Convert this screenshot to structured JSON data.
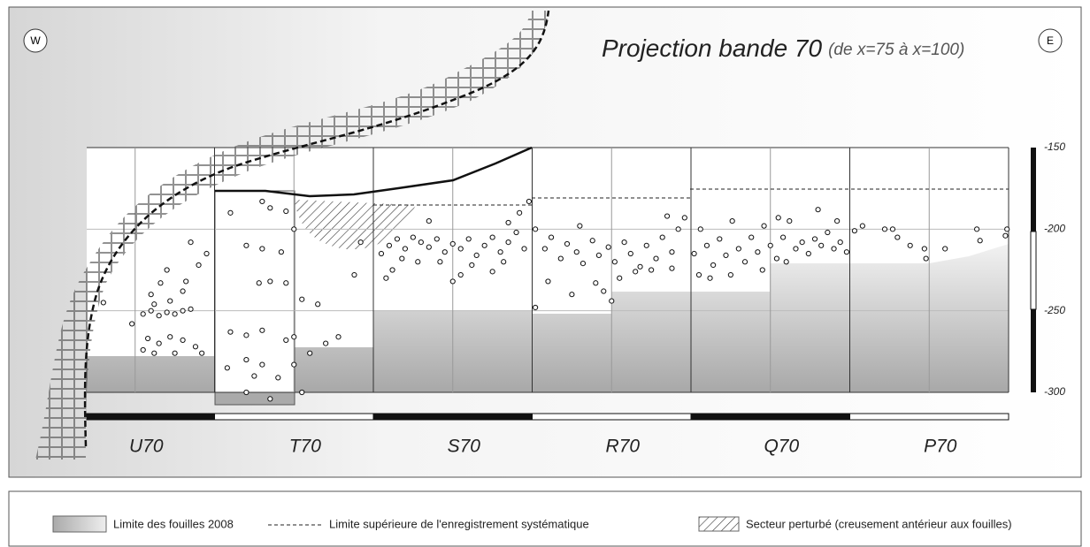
{
  "chart_data": {
    "type": "scatter",
    "title": "Projection bande 70",
    "subtitle": "(de x=75 à x=100)",
    "west_label": "W",
    "east_label": "E",
    "categories": [
      "U70",
      "T70",
      "S70",
      "R70",
      "Q70",
      "P70"
    ],
    "xlim": [
      0,
      6
    ],
    "ylim": [
      -150,
      -300
    ],
    "yticks": [
      -150,
      -200,
      -250,
      -300
    ],
    "legend_items": [
      "Limite des fouilles 2008",
      "Limite supérieure de l'enregistrement systématique",
      "Secteur perturbé (creusement antérieur aux fouilles)"
    ],
    "x": [
      0.55,
      0.6,
      0.65,
      0.7,
      0.75,
      0.8,
      0.85,
      0.62,
      0.72,
      0.8,
      0.82,
      0.6,
      0.66,
      0.7,
      0.9,
      0.85,
      0.95,
      0.58,
      0.65,
      0.72,
      0.8,
      0.88,
      0.92,
      0.75,
      0.62,
      0.55,
      0.48,
      0.3,
      1.1,
      1.3,
      1.35,
      1.45,
      1.2,
      1.28,
      1.35,
      1.45,
      1.42,
      1.3,
      1.5,
      1.55,
      1.1,
      1.2,
      1.3,
      1.45,
      1.5,
      1.08,
      1.2,
      1.25,
      1.3,
      1.4,
      1.5,
      1.55,
      1.2,
      1.35,
      1.6,
      1.7,
      1.78,
      1.65,
      1.88,
      1.92,
      2.05,
      2.1,
      2.15,
      2.2,
      2.25,
      2.3,
      2.35,
      2.4,
      2.45,
      2.5,
      2.55,
      2.6,
      2.65,
      2.7,
      2.75,
      2.8,
      2.85,
      2.9,
      2.95,
      2.18,
      2.28,
      2.42,
      2.62,
      2.82,
      2.12,
      2.55,
      2.75,
      2.08,
      2.35,
      2.85,
      2.92,
      2.98,
      2.5,
      3.02,
      3.08,
      3.12,
      3.18,
      3.22,
      3.28,
      3.32,
      3.38,
      3.42,
      3.48,
      3.52,
      3.58,
      3.62,
      3.68,
      3.72,
      3.78,
      3.82,
      3.88,
      3.92,
      3.96,
      3.85,
      3.75,
      3.55,
      3.4,
      3.25,
      3.5,
      3.02,
      3.1,
      3.3,
      3.45,
      3.65,
      3.88,
      4.02,
      4.06,
      4.1,
      4.14,
      4.18,
      4.22,
      4.26,
      4.3,
      4.34,
      4.38,
      4.42,
      4.46,
      4.5,
      4.54,
      4.58,
      4.62,
      4.66,
      4.7,
      4.74,
      4.78,
      4.82,
      4.86,
      4.9,
      4.94,
      4.98,
      4.05,
      4.12,
      4.25,
      4.45,
      4.6,
      4.8,
      4.92,
      4.55,
      5.03,
      5.08,
      5.22,
      5.27,
      5.3,
      5.38,
      5.47,
      5.48,
      5.6,
      5.8,
      5.82,
      5.98,
      5.99
    ],
    "values": [
      -252,
      -250,
      -253,
      -251,
      -252,
      -250,
      -249,
      -246,
      -244,
      -238,
      -232,
      -240,
      -233,
      -225,
      -222,
      -208,
      -215,
      -267,
      -270,
      -266,
      -268,
      -272,
      -276,
      -276,
      -276,
      -274,
      -258,
      -245,
      -190,
      -183,
      -187,
      -189,
      -210,
      -233,
      -232,
      -233,
      -214,
      -212,
      -200,
      -243,
      -263,
      -265,
      -262,
      -268,
      -266,
      -285,
      -280,
      -290,
      -283,
      -291,
      -283,
      -300,
      -300,
      -304,
      -276,
      -270,
      -266,
      -246,
      -228,
      -208,
      -215,
      -210,
      -206,
      -212,
      -205,
      -208,
      -211,
      -206,
      -214,
      -209,
      -212,
      -206,
      -216,
      -210,
      -205,
      -214,
      -208,
      -202,
      -212,
      -218,
      -220,
      -220,
      -222,
      -220,
      -225,
      -228,
      -226,
      -230,
      -195,
      -196,
      -190,
      -183,
      -232,
      -200,
      -212,
      -205,
      -218,
      -209,
      -214,
      -221,
      -207,
      -216,
      -211,
      -220,
      -208,
      -215,
      -223,
      -210,
      -218,
      -205,
      -214,
      -200,
      -193,
      -192,
      -225,
      -230,
      -233,
      -240,
      -244,
      -248,
      -232,
      -198,
      -238,
      -226,
      -224,
      -215,
      -200,
      -210,
      -222,
      -206,
      -216,
      -195,
      -212,
      -220,
      -205,
      -214,
      -198,
      -210,
      -218,
      -205,
      -195,
      -212,
      -208,
      -215,
      -206,
      -210,
      -202,
      -212,
      -208,
      -214,
      -228,
      -230,
      -228,
      -225,
      -220,
      -188,
      -195,
      -193,
      -201,
      -198,
      -200,
      -200,
      -205,
      -210,
      -212,
      -218,
      -212,
      -200,
      -207,
      -204,
      -200
    ]
  }
}
